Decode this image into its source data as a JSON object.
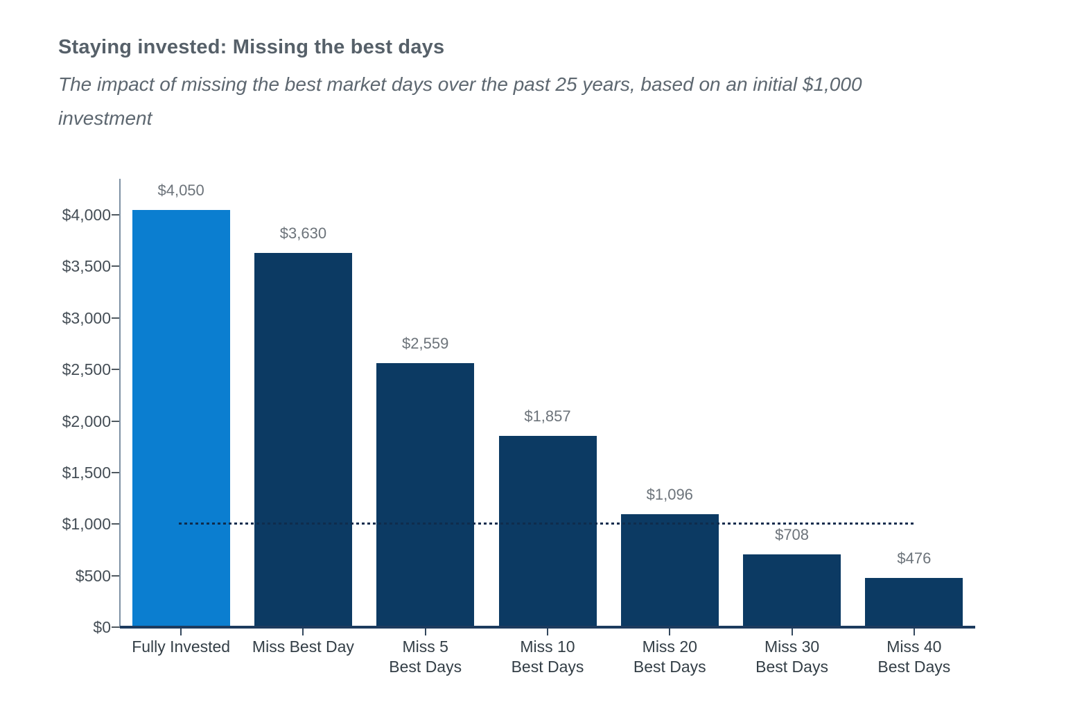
{
  "header": {
    "title": "Staying invested: Missing the best days",
    "subtitle_lines": [
      "The impact of missing the best market days over the past 25 years, based on an initial $1,000",
      "investment"
    ]
  },
  "colors": {
    "bar_highlight": "#0b7ed0",
    "bar_default": "#0c3a63",
    "x_axis": "#1d3b5e",
    "y_axis": "#7e91a4",
    "y_tick": "#4f585f",
    "x_tick": "#33475c",
    "reference": "#0f2c4d",
    "title_text": "#566069",
    "subtitle_text": "#5d6770",
    "value_label_text": "#6c737a",
    "category_label_text": "#333e46",
    "y_label_text": "#454e56"
  },
  "chart_data": {
    "type": "bar",
    "title": "Staying invested: Missing the best days",
    "subtitle": "The impact of missing the best market days over the past 25 years, based on an initial $1,000 investment",
    "categories": [
      [
        "Fully Invested"
      ],
      [
        "Miss Best Day"
      ],
      [
        "Miss 5",
        "Best Days"
      ],
      [
        "Miss 10",
        "Best Days"
      ],
      [
        "Miss 20",
        "Best Days"
      ],
      [
        "Miss 30",
        "Best Days"
      ],
      [
        "Miss 40",
        "Best Days"
      ]
    ],
    "values": [
      4050,
      3630,
      2559,
      1857,
      1096,
      708,
      476
    ],
    "value_labels": [
      "$4,050",
      "$3,630",
      "$2,559",
      "$1,857",
      "$1,096",
      "$708",
      "$476"
    ],
    "highlight_index": 0,
    "y_axis": {
      "min": 0,
      "max": 4350,
      "tick_step": 500,
      "tick_labels": [
        "$0",
        "$500",
        "$1,000",
        "$1,500",
        "$2,000",
        "$2,500",
        "$3,000",
        "$3,500",
        "$4,000"
      ]
    },
    "reference_line": {
      "value": 1000,
      "style": "dotted",
      "from_category": 0,
      "to_category": 6
    },
    "grid": false,
    "legend": false,
    "ylabel": "",
    "xlabel": ""
  }
}
